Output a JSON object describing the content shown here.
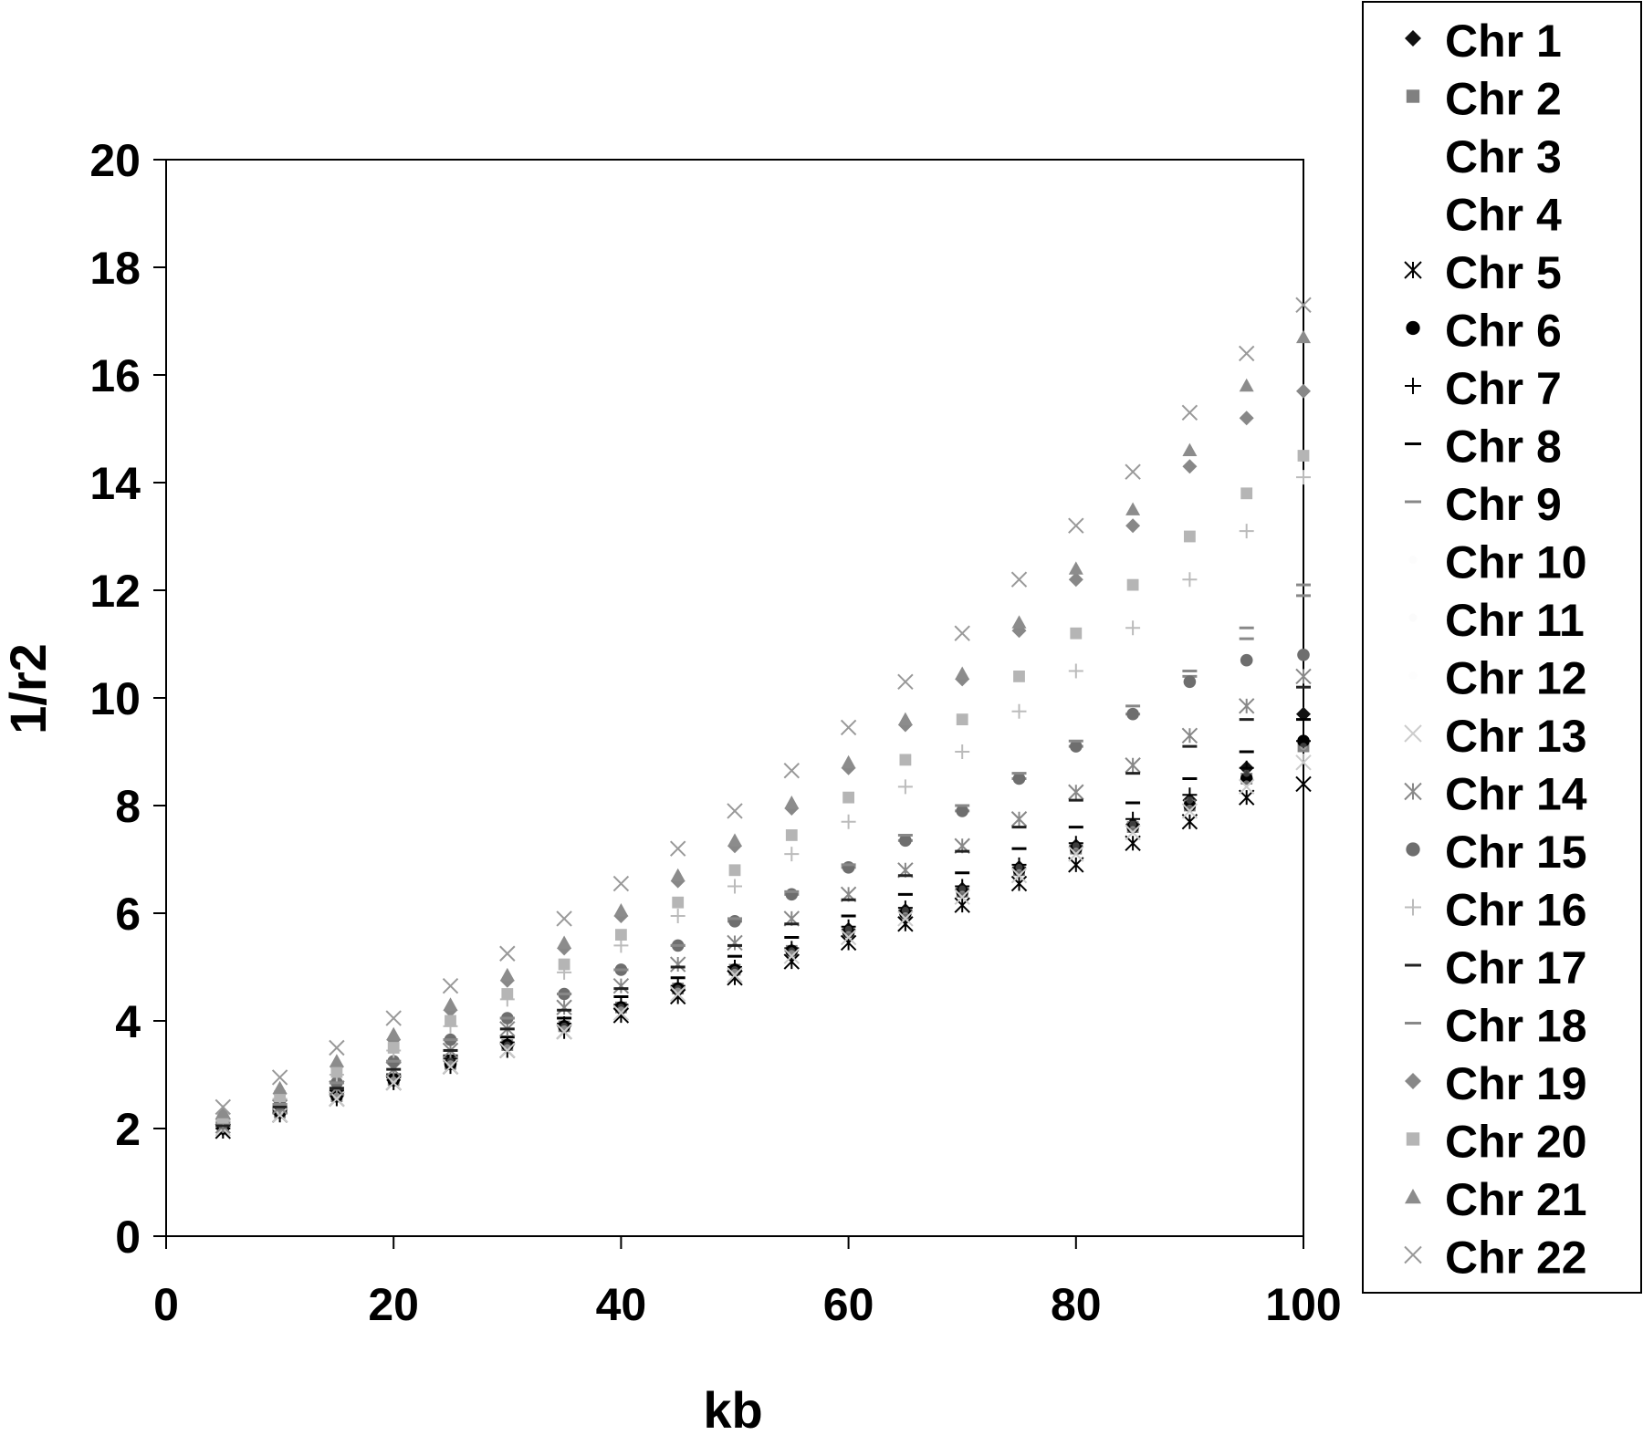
{
  "chart_data": {
    "type": "scatter",
    "title": "",
    "xlabel": "kb",
    "ylabel": "1/r2",
    "xlim": [
      0,
      100
    ],
    "ylim": [
      0,
      20
    ],
    "x_ticks": [
      "0",
      "20",
      "40",
      "60",
      "80",
      "100"
    ],
    "y_ticks": [
      "0",
      "2",
      "4",
      "6",
      "8",
      "10",
      "12",
      "14",
      "16",
      "18",
      "20"
    ],
    "grid": false,
    "legend_position": "right",
    "x": [
      5,
      10,
      15,
      20,
      25,
      30,
      35,
      40,
      45,
      50,
      55,
      60,
      65,
      70,
      75,
      80,
      85,
      90,
      95,
      100
    ],
    "series": [
      {
        "name": "Chr 1",
        "marker": "diamond",
        "color": "#111111",
        "values": [
          2.0,
          2.3,
          2.6,
          2.9,
          3.25,
          3.55,
          3.9,
          4.25,
          4.6,
          4.95,
          5.3,
          5.7,
          6.05,
          6.45,
          6.85,
          7.25,
          7.65,
          8.1,
          8.7,
          9.7
        ]
      },
      {
        "name": "Chr 2",
        "marker": "square",
        "color": "#808080",
        "values": [
          2.0,
          2.3,
          2.6,
          2.9,
          3.2,
          3.55,
          3.9,
          4.25,
          4.6,
          4.95,
          5.3,
          5.65,
          6.0,
          6.4,
          6.8,
          7.2,
          7.6,
          8.0,
          8.5,
          9.1
        ]
      },
      {
        "name": "Chr 3",
        "marker": "none",
        "color": "#ffffff",
        "values": [
          2.0,
          2.3,
          2.6,
          2.9,
          3.2,
          3.5,
          3.85,
          4.2,
          4.55,
          4.9,
          5.25,
          5.6,
          5.95,
          6.35,
          6.75,
          7.15,
          7.55,
          7.95,
          8.4,
          8.9
        ]
      },
      {
        "name": "Chr 4",
        "marker": "none",
        "color": "#ffffff",
        "values": [
          2.0,
          2.3,
          2.6,
          2.9,
          3.2,
          3.5,
          3.85,
          4.2,
          4.55,
          4.9,
          5.25,
          5.6,
          5.95,
          6.35,
          6.75,
          7.15,
          7.55,
          7.95,
          8.4,
          8.9
        ]
      },
      {
        "name": "Chr 5",
        "marker": "asterisk",
        "color": "#000000",
        "values": [
          1.95,
          2.25,
          2.55,
          2.85,
          3.15,
          3.45,
          3.8,
          4.1,
          4.45,
          4.8,
          5.1,
          5.45,
          5.8,
          6.15,
          6.55,
          6.9,
          7.3,
          7.7,
          8.15,
          8.4
        ]
      },
      {
        "name": "Chr 6",
        "marker": "circle",
        "color": "#000000",
        "values": [
          2.0,
          2.3,
          2.6,
          2.9,
          3.2,
          3.55,
          3.9,
          4.25,
          4.6,
          4.95,
          5.3,
          5.65,
          6.0,
          6.4,
          6.8,
          7.2,
          7.6,
          8.0,
          8.5,
          9.2
        ]
      },
      {
        "name": "Chr 7",
        "marker": "plus",
        "color": "#000000",
        "values": [
          2.0,
          2.3,
          2.65,
          2.95,
          3.3,
          3.6,
          3.95,
          4.3,
          4.65,
          5.0,
          5.35,
          5.75,
          6.1,
          6.5,
          6.9,
          7.3,
          7.75,
          8.2,
          8.7,
          9.2
        ]
      },
      {
        "name": "Chr 8",
        "marker": "dash",
        "color": "#000000",
        "values": [
          2.05,
          2.35,
          2.7,
          3.0,
          3.35,
          3.7,
          4.05,
          4.45,
          4.8,
          5.2,
          5.55,
          5.95,
          6.35,
          6.75,
          7.2,
          7.6,
          8.05,
          8.5,
          9.0,
          9.6
        ]
      },
      {
        "name": "Chr 9",
        "marker": "dash",
        "color": "#888888",
        "values": [
          2.1,
          2.45,
          2.85,
          3.25,
          3.65,
          4.05,
          4.5,
          4.95,
          5.4,
          5.85,
          6.35,
          6.85,
          7.35,
          7.9,
          8.5,
          9.1,
          9.7,
          10.4,
          11.1,
          11.9
        ]
      },
      {
        "name": "Chr 10",
        "marker": "none",
        "color": "#f2f2f2",
        "values": [
          2.0,
          2.3,
          2.6,
          2.9,
          3.25,
          3.55,
          3.9,
          4.25,
          4.6,
          4.95,
          5.3,
          5.7,
          6.05,
          6.45,
          6.85,
          7.25,
          7.65,
          8.1,
          8.6,
          9.1
        ]
      },
      {
        "name": "Chr 11",
        "marker": "none",
        "color": "#eeeeee",
        "values": [
          2.0,
          2.3,
          2.6,
          2.9,
          3.2,
          3.5,
          3.85,
          4.2,
          4.55,
          4.9,
          5.25,
          5.6,
          5.95,
          6.35,
          6.75,
          7.15,
          7.55,
          7.95,
          8.4,
          8.9
        ]
      },
      {
        "name": "Chr 12",
        "marker": "none",
        "color": "#f6f6f6",
        "values": [
          2.0,
          2.3,
          2.6,
          2.9,
          3.2,
          3.5,
          3.85,
          4.2,
          4.55,
          4.9,
          5.25,
          5.6,
          5.95,
          6.35,
          6.75,
          7.15,
          7.55,
          7.95,
          8.4,
          8.9
        ]
      },
      {
        "name": "Chr 13",
        "marker": "x",
        "color": "#cccccc",
        "values": [
          2.0,
          2.25,
          2.55,
          2.85,
          3.15,
          3.45,
          3.8,
          4.15,
          4.5,
          4.85,
          5.2,
          5.55,
          5.9,
          6.3,
          6.7,
          7.1,
          7.5,
          7.9,
          8.35,
          8.8
        ]
      },
      {
        "name": "Chr 14",
        "marker": "asterisk",
        "color": "#888888",
        "values": [
          2.05,
          2.4,
          2.75,
          3.1,
          3.45,
          3.85,
          4.25,
          4.65,
          5.05,
          5.45,
          5.9,
          6.35,
          6.8,
          7.25,
          7.75,
          8.25,
          8.75,
          9.3,
          9.85,
          10.4
        ]
      },
      {
        "name": "Chr 15",
        "marker": "circle",
        "color": "#6e6e6e",
        "values": [
          2.1,
          2.45,
          2.85,
          3.25,
          3.65,
          4.05,
          4.5,
          4.95,
          5.4,
          5.85,
          6.35,
          6.85,
          7.35,
          7.9,
          8.5,
          9.1,
          9.7,
          10.3,
          10.7,
          10.8
        ]
      },
      {
        "name": "Chr 16",
        "marker": "plus",
        "color": "#bbbbbb",
        "values": [
          2.15,
          2.55,
          3.0,
          3.45,
          3.9,
          4.4,
          4.9,
          5.4,
          5.95,
          6.5,
          7.1,
          7.7,
          8.35,
          9.0,
          9.75,
          10.5,
          11.3,
          12.2,
          13.1,
          14.1
        ]
      },
      {
        "name": "Chr 17",
        "marker": "dash",
        "color": "#222222",
        "values": [
          2.05,
          2.4,
          2.75,
          3.1,
          3.45,
          3.85,
          4.2,
          4.6,
          5.0,
          5.4,
          5.8,
          6.25,
          6.7,
          7.15,
          7.6,
          8.1,
          8.6,
          9.1,
          9.6,
          10.2
        ]
      },
      {
        "name": "Chr 18",
        "marker": "dash",
        "color": "#888888",
        "values": [
          2.1,
          2.45,
          2.85,
          3.25,
          3.65,
          4.05,
          4.5,
          4.95,
          5.4,
          5.9,
          6.4,
          6.9,
          7.45,
          8.0,
          8.6,
          9.2,
          9.85,
          10.5,
          11.3,
          12.1
        ]
      },
      {
        "name": "Chr 19",
        "marker": "diamond",
        "color": "#888888",
        "values": [
          2.2,
          2.65,
          3.15,
          3.65,
          4.2,
          4.75,
          5.35,
          5.95,
          6.6,
          7.25,
          7.95,
          8.7,
          9.5,
          10.35,
          11.25,
          12.2,
          13.2,
          14.3,
          15.2,
          15.7
        ]
      },
      {
        "name": "Chr 20",
        "marker": "square",
        "color": "#b5b5b5",
        "values": [
          2.2,
          2.6,
          3.05,
          3.5,
          4.0,
          4.5,
          5.05,
          5.6,
          6.2,
          6.8,
          7.45,
          8.15,
          8.85,
          9.6,
          10.4,
          11.2,
          12.1,
          13.0,
          13.8,
          14.5
        ]
      },
      {
        "name": "Chr 21",
        "marker": "triangle",
        "color": "#8c8c8c",
        "values": [
          2.3,
          2.75,
          3.25,
          3.75,
          4.3,
          4.85,
          5.45,
          6.05,
          6.7,
          7.35,
          8.05,
          8.8,
          9.6,
          10.45,
          11.4,
          12.4,
          13.5,
          14.6,
          15.8,
          16.7
        ]
      },
      {
        "name": "Chr 22",
        "marker": "x",
        "color": "#999999",
        "values": [
          2.4,
          2.95,
          3.5,
          4.05,
          4.65,
          5.25,
          5.9,
          6.55,
          7.2,
          7.9,
          8.65,
          9.45,
          10.3,
          11.2,
          12.2,
          13.2,
          14.2,
          15.3,
          16.4,
          17.3
        ]
      }
    ]
  }
}
